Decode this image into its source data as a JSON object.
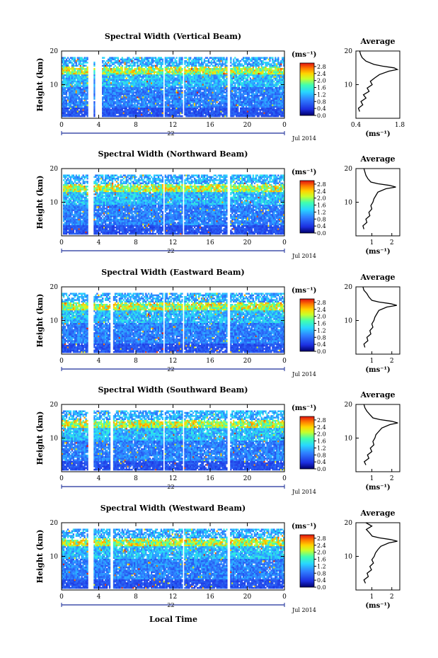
{
  "figure": {
    "x_axis_label": "Local Time",
    "date_label": "22",
    "month_label": "Jul 2014",
    "y_axis_label": "Height (km)",
    "unit_label": "(ms⁻¹)",
    "avg_title": "Average"
  },
  "chart_data": [
    {
      "type": "heatmap",
      "title": "Spectral Width (Vertical Beam)",
      "x_ticks": [
        "0",
        "4",
        "8",
        "12",
        "16",
        "20",
        "0"
      ],
      "y_ticks": [
        "20",
        "10"
      ],
      "xlim": [
        0,
        24
      ],
      "ylim": [
        0,
        20
      ],
      "colorbar": {
        "ticks": [
          "2.8",
          "2.4",
          "2.0",
          "1.6",
          "1.2",
          "0.8",
          "0.4",
          "0.0"
        ],
        "range": [
          0,
          3.0
        ]
      },
      "data_gaps_hours": [
        [
          2.9,
          3.5
        ],
        [
          3.6,
          4.3
        ],
        [
          10.9,
          11.1
        ],
        [
          13.0,
          13.2
        ],
        [
          17.8,
          18.1
        ]
      ],
      "average_profile": {
        "title": "Average",
        "xlabel": "(ms⁻¹)",
        "x_ticks": [
          "0.4",
          "1.8"
        ],
        "xlim": [
          0.4,
          1.8
        ],
        "y_ticks": [
          "20",
          "10"
        ],
        "height_km": [
          2,
          3,
          4,
          5,
          6,
          7,
          8,
          9,
          10,
          11,
          12,
          13,
          14,
          14.5,
          15,
          15.5,
          16,
          17,
          18,
          19,
          20
        ],
        "width_ms": [
          0.52,
          0.48,
          0.62,
          0.56,
          0.72,
          0.64,
          0.82,
          0.76,
          0.92,
          0.86,
          1.0,
          1.15,
          1.45,
          1.72,
          1.62,
          1.25,
          0.98,
          0.72,
          0.6,
          0.55,
          0.52
        ]
      }
    },
    {
      "type": "heatmap",
      "title": "Spectral Width (Northward Beam)",
      "x_ticks": [
        "0",
        "4",
        "8",
        "12",
        "16",
        "20",
        "0"
      ],
      "y_ticks": [
        "20",
        "10"
      ],
      "xlim": [
        0,
        24
      ],
      "ylim": [
        0,
        20
      ],
      "colorbar": {
        "ticks": [
          "2.8",
          "2.4",
          "2.0",
          "1.6",
          "1.2",
          "0.8",
          "0.4",
          "0.0"
        ],
        "range": [
          0,
          3.0
        ]
      },
      "data_gaps_hours": [
        [
          0,
          0.2
        ],
        [
          2.9,
          3.5
        ],
        [
          10.9,
          11.1
        ],
        [
          13.0,
          13.2
        ],
        [
          17.8,
          18.1
        ]
      ],
      "average_profile": {
        "title": "Average",
        "xlabel": "(ms⁻¹)",
        "x_ticks": [
          "1",
          "2"
        ],
        "xlim": [
          0.2,
          2.4
        ],
        "y_ticks": [
          "20",
          "10"
        ],
        "height_km": [
          2,
          3,
          4,
          5,
          6,
          7,
          8,
          9,
          10,
          11,
          12,
          13,
          14,
          14.5,
          15,
          15.5,
          16,
          17,
          18,
          19,
          20
        ],
        "width_ms": [
          0.6,
          0.55,
          0.75,
          0.7,
          0.9,
          0.85,
          1.0,
          0.95,
          1.05,
          1.1,
          1.2,
          1.3,
          1.7,
          2.2,
          1.9,
          1.3,
          0.95,
          0.8,
          0.7,
          0.65,
          0.6
        ]
      }
    },
    {
      "type": "heatmap",
      "title": "Spectral Width (Eastward Beam)",
      "x_ticks": [
        "0",
        "4",
        "8",
        "12",
        "16",
        "20",
        "0"
      ],
      "y_ticks": [
        "20",
        "10"
      ],
      "xlim": [
        0,
        24
      ],
      "ylim": [
        0,
        20
      ],
      "colorbar": {
        "ticks": [
          "2.8",
          "2.4",
          "2.0",
          "1.6",
          "1.2",
          "0.8",
          "0.4",
          "0.0"
        ],
        "range": [
          0,
          3.0
        ]
      },
      "data_gaps_hours": [
        [
          2.9,
          3.5
        ],
        [
          5.3,
          5.6
        ],
        [
          10.9,
          11.1
        ],
        [
          13.0,
          13.2
        ],
        [
          17.8,
          18.1
        ]
      ],
      "average_profile": {
        "title": "Average",
        "xlabel": "(ms⁻¹)",
        "x_ticks": [
          "1",
          "2"
        ],
        "xlim": [
          0.2,
          2.4
        ],
        "y_ticks": [
          "20",
          "10"
        ],
        "height_km": [
          2,
          3,
          4,
          5,
          6,
          7,
          8,
          9,
          10,
          11,
          12,
          13,
          14,
          14.5,
          15,
          15.5,
          16,
          17,
          18,
          19,
          20
        ],
        "width_ms": [
          0.65,
          0.6,
          0.8,
          0.75,
          0.95,
          0.9,
          1.05,
          1.0,
          1.1,
          1.15,
          1.25,
          1.35,
          1.75,
          2.25,
          1.95,
          1.35,
          1.0,
          0.85,
          0.75,
          0.6,
          0.55
        ]
      }
    },
    {
      "type": "heatmap",
      "title": "Spectral Width (Southward Beam)",
      "x_ticks": [
        "0",
        "4",
        "8",
        "12",
        "16",
        "20",
        "0"
      ],
      "y_ticks": [
        "20",
        "10"
      ],
      "xlim": [
        0,
        24
      ],
      "ylim": [
        0,
        20
      ],
      "colorbar": {
        "ticks": [
          "2.8",
          "2.4",
          "2.0",
          "1.6",
          "1.2",
          "0.8",
          "0.4",
          "0.0"
        ],
        "range": [
          0,
          3.0
        ]
      },
      "data_gaps_hours": [
        [
          2.9,
          3.5
        ],
        [
          5.3,
          5.6
        ],
        [
          10.9,
          11.1
        ],
        [
          13.0,
          13.2
        ],
        [
          17.8,
          18.1
        ]
      ],
      "average_profile": {
        "title": "Average",
        "xlabel": "(ms⁻¹)",
        "x_ticks": [
          "1",
          "2"
        ],
        "xlim": [
          0.2,
          2.4
        ],
        "y_ticks": [
          "20",
          "10"
        ],
        "height_km": [
          2,
          3,
          4,
          5,
          6,
          7,
          8,
          9,
          10,
          11,
          12,
          13,
          14,
          14.5,
          15,
          15.5,
          16,
          17,
          18,
          19,
          20
        ],
        "width_ms": [
          0.7,
          0.62,
          0.85,
          0.78,
          1.0,
          0.92,
          1.1,
          1.05,
          1.15,
          1.2,
          1.35,
          1.5,
          1.9,
          2.3,
          2.0,
          1.4,
          1.05,
          0.9,
          0.75,
          0.65,
          0.6
        ]
      }
    },
    {
      "type": "heatmap",
      "title": "Spectral Width (Westward Beam)",
      "x_ticks": [
        "0",
        "4",
        "8",
        "12",
        "16",
        "20",
        "0"
      ],
      "y_ticks": [
        "20",
        "10"
      ],
      "xlim": [
        0,
        24
      ],
      "ylim": [
        0,
        20
      ],
      "colorbar": {
        "ticks": [
          "2.8",
          "2.4",
          "2.0",
          "1.6",
          "1.2",
          "0.8",
          "0.4",
          "0.0"
        ],
        "range": [
          0,
          3.0
        ]
      },
      "data_gaps_hours": [
        [
          2.9,
          3.5
        ],
        [
          5.3,
          5.6
        ],
        [
          13.0,
          13.2
        ],
        [
          17.8,
          18.1
        ]
      ],
      "average_profile": {
        "title": "Average",
        "xlabel": "(ms⁻¹)",
        "x_ticks": [
          "1",
          "2"
        ],
        "xlim": [
          0.2,
          2.4
        ],
        "y_ticks": [
          "20",
          "10"
        ],
        "height_km": [
          2,
          3,
          4,
          5,
          6,
          7,
          8,
          9,
          10,
          11,
          12,
          13,
          14,
          14.5,
          15,
          15.5,
          16,
          17,
          18,
          19,
          20
        ],
        "width_ms": [
          0.68,
          0.6,
          0.82,
          0.76,
          0.98,
          0.9,
          1.08,
          1.0,
          1.12,
          1.18,
          1.3,
          1.45,
          1.85,
          2.28,
          1.95,
          1.38,
          1.02,
          0.88,
          0.72,
          1.0,
          0.7
        ]
      }
    }
  ]
}
